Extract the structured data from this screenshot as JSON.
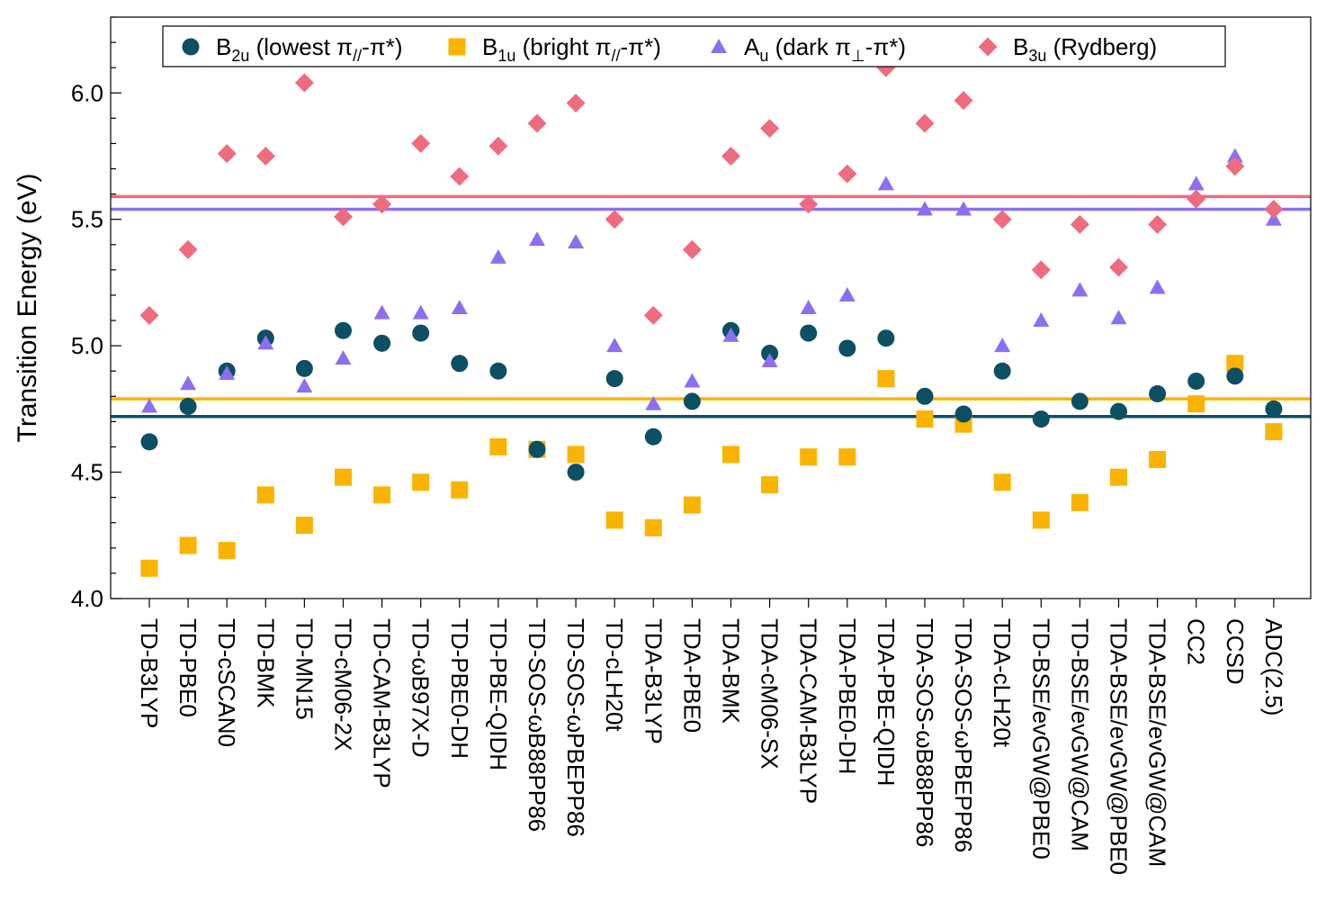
{
  "chart_data": {
    "type": "scatter",
    "ylabel": "Transition Energy (eV)",
    "ylim": [
      4.0,
      6.3
    ],
    "yticks": [
      "4.0",
      "4.5",
      "5.0",
      "5.5",
      "6.0"
    ],
    "grid": false,
    "legend_position": "top",
    "categories": [
      "TD-B3LYP",
      "TD-PBE0",
      "TD-cSCAN0",
      "TD-BMK",
      "TD-MN15",
      "TD-cM06-2X",
      "TD-CAM-B3LYP",
      "TD-ωB97X-D",
      "TD-PBE0-DH",
      "TD-PBE-QIDH",
      "TD-SOS-ωB88PP86",
      "TD-SOS-ωPBEPP86",
      "TD-cLH20t",
      "TDA-B3LYP",
      "TDA-PBE0",
      "TDA-BMK",
      "TDA-cM06-SX",
      "TDA-CAM-B3LYP",
      "TDA-PBE0-DH",
      "TDA-PBE-QIDH",
      "TDA-SOS-ωB88PP86",
      "TDA-SOS-ωPBEPP86",
      "TDA-cLH20t",
      "TD-BSE/evGW@PBE0",
      "TD-BSE/evGW@CAM",
      "TDA-BSE/evGW@PBE0",
      "TDA-BSE/evGW@CAM",
      "CC2",
      "CCSD",
      "ADC(2.5)"
    ],
    "series": [
      {
        "name_main": "B",
        "name_sub": "2u",
        "name_rest": " (lowest π",
        "name_sub2": "//",
        "name_tail": "-π*)",
        "marker": "circle",
        "color": "#0d4f63",
        "reference": 4.72,
        "values": [
          4.62,
          4.76,
          4.9,
          5.03,
          4.91,
          5.06,
          5.01,
          5.05,
          4.93,
          4.9,
          4.59,
          4.5,
          4.87,
          4.64,
          4.78,
          5.06,
          4.97,
          5.05,
          4.99,
          5.03,
          4.8,
          4.73,
          4.9,
          4.71,
          4.78,
          4.74,
          4.81,
          4.86,
          4.88,
          4.75
        ]
      },
      {
        "name_main": "B",
        "name_sub": "1u",
        "name_rest": " (bright π",
        "name_sub2": "//",
        "name_tail": "-π*)",
        "marker": "square",
        "color": "#f8b400",
        "reference": 4.79,
        "values": [
          4.12,
          4.21,
          4.19,
          4.41,
          4.29,
          4.48,
          4.41,
          4.46,
          4.43,
          4.6,
          4.59,
          4.57,
          4.31,
          4.28,
          4.37,
          4.57,
          4.45,
          4.56,
          4.56,
          4.87,
          4.71,
          4.69,
          4.46,
          4.31,
          4.38,
          4.48,
          4.55,
          4.77,
          4.93,
          4.66
        ]
      },
      {
        "name_main": "A",
        "name_sub": "u",
        "name_rest": " (dark π",
        "name_sub2": "⊥",
        "name_tail": "-π*)",
        "marker": "triangle",
        "color": "#8c6ff0",
        "reference": 5.54,
        "values": [
          4.76,
          4.85,
          4.89,
          5.01,
          4.84,
          4.95,
          5.13,
          5.13,
          5.15,
          5.35,
          5.42,
          5.41,
          5.0,
          4.77,
          4.86,
          5.04,
          4.94,
          5.15,
          5.2,
          5.64,
          5.54,
          5.54,
          5.0,
          5.1,
          5.22,
          5.11,
          5.23,
          5.64,
          5.75,
          5.5
        ]
      },
      {
        "name_main": "B",
        "name_sub": "3u",
        "name_rest": " (Rydberg)",
        "name_sub2": "",
        "name_tail": "",
        "marker": "diamond",
        "color": "#ee6b80",
        "reference": 5.59,
        "values": [
          5.12,
          5.38,
          5.76,
          5.75,
          6.04,
          5.51,
          5.56,
          5.8,
          5.67,
          5.79,
          5.88,
          5.96,
          5.5,
          5.12,
          5.38,
          5.75,
          5.86,
          5.56,
          5.68,
          6.1,
          5.88,
          5.97,
          5.5,
          5.3,
          5.48,
          5.31,
          5.48,
          5.58,
          5.71,
          5.54
        ]
      }
    ]
  }
}
